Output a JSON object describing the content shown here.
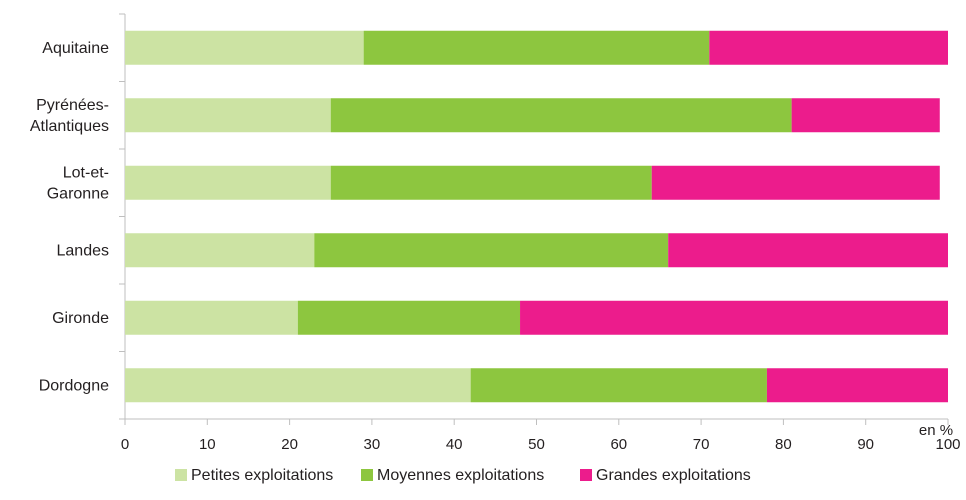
{
  "chart_data": {
    "type": "bar",
    "orientation": "horizontal",
    "stacked": true,
    "categories": [
      "Aquitaine",
      "Pyrénées-Atlantiques",
      "Lot-et-Garonne",
      "Landes",
      "Gironde",
      "Dordogne"
    ],
    "category_lines": [
      [
        "Aquitaine"
      ],
      [
        "Pyrénées-",
        "Atlantiques"
      ],
      [
        "Lot-et-",
        "Garonne"
      ],
      [
        "Landes"
      ],
      [
        "Gironde"
      ],
      [
        "Dordogne"
      ]
    ],
    "series": [
      {
        "name": "Petites exploitations",
        "color": "#cce3a3",
        "values": [
          29,
          25,
          25,
          23,
          21,
          42
        ]
      },
      {
        "name": "Moyennes exploitations",
        "color": "#8dc63f",
        "values": [
          42,
          56,
          39,
          43,
          27,
          36
        ]
      },
      {
        "name": "Grandes exploitations",
        "color": "#ec1c8c",
        "values": [
          29,
          18,
          35,
          34,
          52,
          22
        ]
      }
    ],
    "xlim": [
      0,
      100
    ],
    "xticks": [
      0,
      10,
      20,
      30,
      40,
      50,
      60,
      70,
      80,
      90,
      100
    ],
    "unit_label": "en %",
    "grid": false,
    "legend_position": "bottom"
  }
}
